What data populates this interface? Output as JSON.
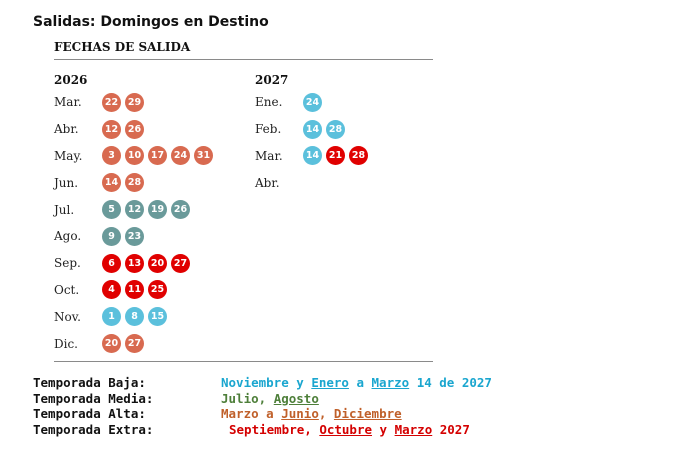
{
  "title": "Salidas: Domingos en Destino",
  "panel": {
    "header": "FECHAS DE SALIDA"
  },
  "colors": {
    "baja": "#5bc0dc",
    "media": "#6a9a9a",
    "alta": "#d86a50",
    "extra": "#e00000"
  },
  "years": [
    {
      "year": "2026",
      "months": [
        {
          "name": "Mar.",
          "days": [
            {
              "d": "22",
              "s": "alta"
            },
            {
              "d": "29",
              "s": "alta"
            }
          ]
        },
        {
          "name": "Abr.",
          "days": [
            {
              "d": "12",
              "s": "alta"
            },
            {
              "d": "26",
              "s": "alta"
            }
          ]
        },
        {
          "name": "May.",
          "days": [
            {
              "d": "3",
              "s": "alta"
            },
            {
              "d": "10",
              "s": "alta"
            },
            {
              "d": "17",
              "s": "alta"
            },
            {
              "d": "24",
              "s": "alta"
            },
            {
              "d": "31",
              "s": "alta"
            }
          ]
        },
        {
          "name": "Jun.",
          "days": [
            {
              "d": "14",
              "s": "alta"
            },
            {
              "d": "28",
              "s": "alta"
            }
          ]
        },
        {
          "name": "Jul.",
          "days": [
            {
              "d": "5",
              "s": "media"
            },
            {
              "d": "12",
              "s": "media"
            },
            {
              "d": "19",
              "s": "media"
            },
            {
              "d": "26",
              "s": "media"
            }
          ]
        },
        {
          "name": "Ago.",
          "days": [
            {
              "d": "9",
              "s": "media"
            },
            {
              "d": "23",
              "s": "media"
            }
          ]
        },
        {
          "name": "Sep.",
          "days": [
            {
              "d": "6",
              "s": "extra"
            },
            {
              "d": "13",
              "s": "extra"
            },
            {
              "d": "20",
              "s": "extra"
            },
            {
              "d": "27",
              "s": "extra"
            }
          ]
        },
        {
          "name": "Oct.",
          "days": [
            {
              "d": "4",
              "s": "extra"
            },
            {
              "d": "11",
              "s": "extra"
            },
            {
              "d": "25",
              "s": "extra"
            }
          ]
        },
        {
          "name": "Nov.",
          "days": [
            {
              "d": "1",
              "s": "baja"
            },
            {
              "d": "8",
              "s": "baja"
            },
            {
              "d": "15",
              "s": "baja"
            }
          ]
        },
        {
          "name": "Dic.",
          "days": [
            {
              "d": "20",
              "s": "alta"
            },
            {
              "d": "27",
              "s": "alta"
            }
          ]
        }
      ]
    },
    {
      "year": "2027",
      "months": [
        {
          "name": "Ene.",
          "days": [
            {
              "d": "24",
              "s": "baja"
            }
          ]
        },
        {
          "name": "Feb.",
          "days": [
            {
              "d": "14",
              "s": "baja"
            },
            {
              "d": "28",
              "s": "baja"
            }
          ]
        },
        {
          "name": "Mar.",
          "days": [
            {
              "d": "14",
              "s": "baja"
            },
            {
              "d": "21",
              "s": "extra"
            },
            {
              "d": "28",
              "s": "extra"
            }
          ]
        },
        {
          "name": "Abr.",
          "days": []
        }
      ]
    }
  ],
  "legend": [
    {
      "label": "Temporada Baja:",
      "color": "#1aa6cf",
      "parts": [
        {
          "t": "Noviembre",
          "u": false
        },
        {
          "t": " y ",
          "u": false
        },
        {
          "t": "Enero",
          "u": true
        },
        {
          "t": " a ",
          "u": false
        },
        {
          "t": "Marzo",
          "u": true
        },
        {
          "t": " 14 de 2027",
          "u": false
        }
      ]
    },
    {
      "label": "Temporada Media:",
      "color": "#4e7f3a",
      "parts": [
        {
          "t": "Julio",
          "u": false
        },
        {
          "t": ", ",
          "u": false
        },
        {
          "t": "Agosto",
          "u": true
        }
      ]
    },
    {
      "label": "Temporada Alta:",
      "color": "#c0602a",
      "parts": [
        {
          "t": "Marzo a ",
          "u": false
        },
        {
          "t": "Junio",
          "u": true
        },
        {
          "t": ", ",
          "u": false
        },
        {
          "t": "Diciembre",
          "u": true
        }
      ]
    },
    {
      "label": "Temporada Extra:",
      "color": "#d40000",
      "parts": [
        {
          "t": "Septiembre",
          "u": false
        },
        {
          "t": ", ",
          "u": false
        },
        {
          "t": "Octubre",
          "u": true
        },
        {
          "t": " y ",
          "u": false
        },
        {
          "t": "Marzo",
          "u": true
        },
        {
          "t": " 2027",
          "u": false
        }
      ]
    }
  ]
}
